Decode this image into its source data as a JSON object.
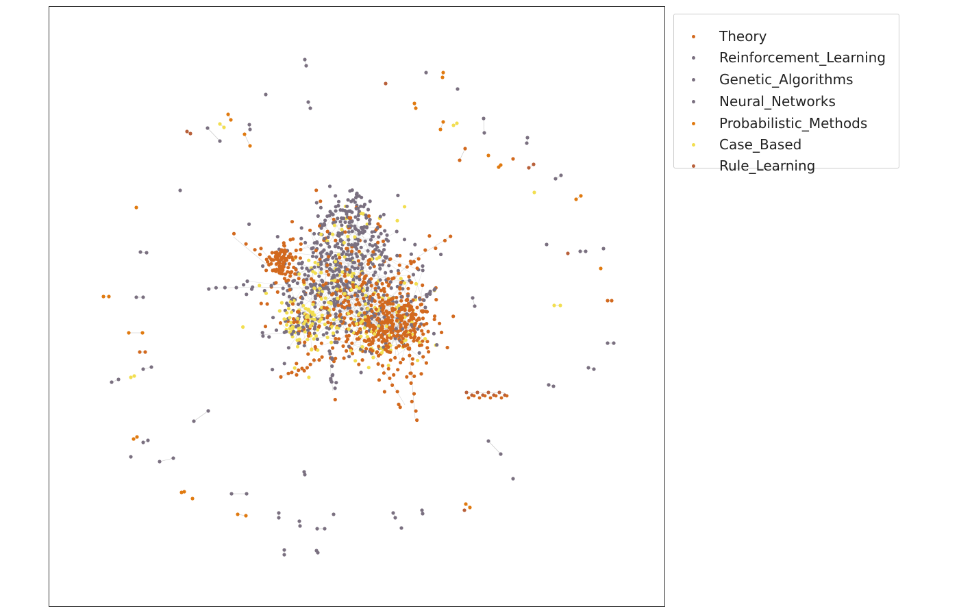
{
  "legend": {
    "items": [
      {
        "label": "Theory",
        "color": "#d2691e"
      },
      {
        "label": "Reinforcement_Learning",
        "color": "#7a7080"
      },
      {
        "label": "Genetic_Algorithms",
        "color": "#7a7080"
      },
      {
        "label": "Neural_Networks",
        "color": "#7a7080"
      },
      {
        "label": "Probabilistic_Methods",
        "color": "#e07a10"
      },
      {
        "label": "Case_Based",
        "color": "#f2de50"
      },
      {
        "label": "Rule_Learning",
        "color": "#b8603a"
      }
    ]
  },
  "graph": {
    "type": "network",
    "colors": {
      "gray": "#7a7080",
      "orange": "#d2691e",
      "orange_dot": "#e07a10",
      "yellow": "#f2de50",
      "brown": "#b8603a",
      "edge": "#9a9a9a"
    }
  }
}
